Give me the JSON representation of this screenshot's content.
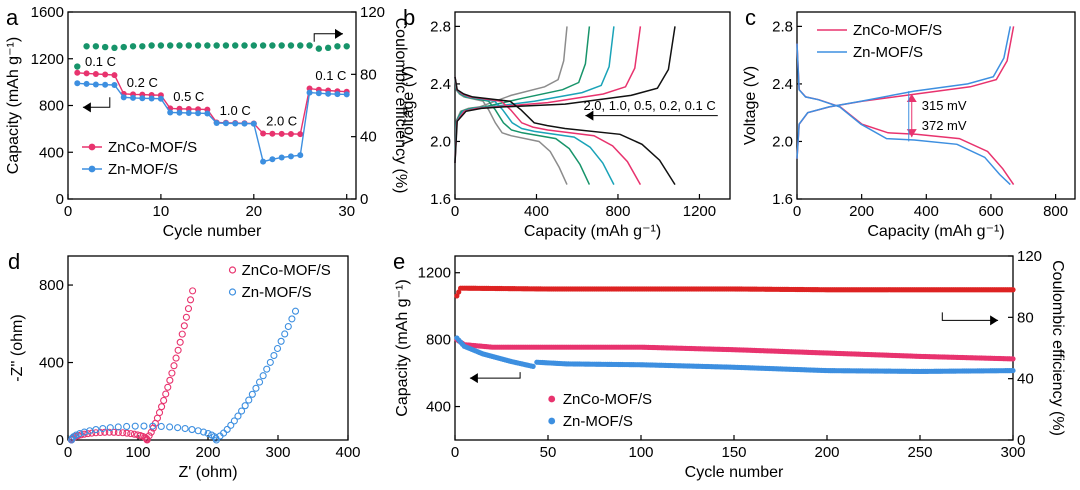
{
  "colors": {
    "pink": "#e8336e",
    "blue": "#3d8fe0",
    "green": "#17946a",
    "red": "#dd2222",
    "axis": "#000000"
  },
  "chart_data": [
    {
      "id": "a",
      "panel_label": "a",
      "type": "scatter",
      "xlabel": "Cycle number",
      "ylabel": "Capacity (mAh g⁻¹)",
      "y2label": "Coulombic efficiency (%)",
      "xlim": [
        0,
        31
      ],
      "ylim": [
        0,
        1600
      ],
      "y2lim": [
        0,
        120
      ],
      "xticks": [
        0,
        10,
        20,
        30
      ],
      "yticks": [
        0,
        400,
        800,
        1200,
        1600
      ],
      "y2ticks": [
        0,
        40,
        80,
        120
      ],
      "legend_position": "bottom-left",
      "rate_labels": [
        {
          "text": "0.1 C",
          "x": 3.5,
          "y": 1140
        },
        {
          "text": "0.2 C",
          "x": 8,
          "y": 960
        },
        {
          "text": "0.5 C",
          "x": 13,
          "y": 840
        },
        {
          "text": "1.0 C",
          "x": 18,
          "y": 720
        },
        {
          "text": "2.0 C",
          "x": 23,
          "y": 630
        },
        {
          "text": "0.1 C",
          "x": 28.3,
          "y": 1020
        }
      ],
      "series": [
        {
          "name": "ZnCo-MOF/S",
          "color": "#e8336e",
          "axis": "left",
          "x": [
            1,
            2,
            3,
            4,
            5,
            6,
            7,
            8,
            9,
            10,
            11,
            12,
            13,
            14,
            15,
            16,
            17,
            18,
            19,
            20,
            21,
            22,
            23,
            24,
            25,
            26,
            27,
            28,
            29,
            30
          ],
          "values": [
            1080,
            1075,
            1070,
            1065,
            1060,
            900,
            895,
            893,
            890,
            888,
            775,
            772,
            770,
            768,
            765,
            655,
            652,
            650,
            648,
            646,
            560,
            558,
            557,
            556,
            555,
            945,
            935,
            928,
            922,
            918
          ]
        },
        {
          "name": "Zn-MOF/S",
          "color": "#3d8fe0",
          "axis": "left",
          "x": [
            1,
            2,
            3,
            4,
            5,
            6,
            7,
            8,
            9,
            10,
            11,
            12,
            13,
            14,
            15,
            16,
            17,
            18,
            19,
            20,
            21,
            22,
            23,
            24,
            25,
            26,
            27,
            28,
            29,
            30
          ],
          "values": [
            990,
            985,
            980,
            978,
            975,
            870,
            865,
            862,
            860,
            858,
            740,
            738,
            736,
            734,
            732,
            650,
            648,
            646,
            645,
            644,
            320,
            340,
            355,
            365,
            375,
            910,
            905,
            900,
            897,
            895
          ]
        },
        {
          "name": "CE",
          "color": "#17946a",
          "axis": "right",
          "x": [
            1,
            2,
            3,
            4,
            5,
            6,
            7,
            8,
            9,
            10,
            11,
            12,
            13,
            14,
            15,
            16,
            17,
            18,
            19,
            20,
            21,
            22,
            23,
            24,
            25,
            26,
            27,
            28,
            29,
            30
          ],
          "values": [
            85,
            98,
            98,
            97.5,
            97,
            97.5,
            98,
            98,
            98.5,
            98.5,
            98.5,
            98.5,
            98.5,
            98.5,
            98.5,
            98.5,
            98.5,
            98.5,
            98.5,
            98.5,
            98.5,
            98.5,
            98.5,
            98.5,
            98.5,
            98.5,
            96.5,
            97,
            98,
            98
          ]
        }
      ]
    },
    {
      "id": "b",
      "panel_label": "b",
      "type": "line",
      "xlabel": "Capacity (mAh g⁻¹)",
      "ylabel": "Voltage (V)",
      "xlim": [
        0,
        1350
      ],
      "ylim": [
        1.6,
        2.9
      ],
      "xticks": [
        0,
        400,
        800,
        1200
      ],
      "yticks": [
        1.6,
        2.0,
        2.4,
        2.8
      ],
      "annotation": "2.0, 1.0, 0.5, 0.2, 0.1 C",
      "series": [
        {
          "name": "2.0 C",
          "color": "#8c8c8c",
          "cap": 550,
          "discharge_plateau": 2.04,
          "charge_plateau": 2.36
        },
        {
          "name": "1.0 C",
          "color": "#17946a",
          "cap": 660,
          "discharge_plateau": 2.06,
          "charge_plateau": 2.34
        },
        {
          "name": "0.5 C",
          "color": "#1aa3b8",
          "cap": 780,
          "discharge_plateau": 2.07,
          "charge_plateau": 2.32
        },
        {
          "name": "0.2 C",
          "color": "#e8336e",
          "cap": 910,
          "discharge_plateau": 2.08,
          "charge_plateau": 2.31
        },
        {
          "name": "0.1 C",
          "color": "#111111",
          "cap": 1080,
          "discharge_plateau": 2.09,
          "charge_plateau": 2.3
        }
      ]
    },
    {
      "id": "c",
      "panel_label": "c",
      "type": "line",
      "xlabel": "Capacity (mAh g⁻¹)",
      "ylabel": "Voltage (V)",
      "xlim": [
        0,
        860
      ],
      "ylim": [
        1.6,
        2.9
      ],
      "xticks": [
        0,
        200,
        400,
        600,
        800
      ],
      "yticks": [
        1.6,
        2.0,
        2.4,
        2.8
      ],
      "legend_position": "top-left",
      "gap_labels": [
        "315 mV",
        "372 mV"
      ],
      "series": [
        {
          "name": "ZnCo-MOF/S",
          "color": "#e8336e",
          "cap": 670,
          "discharge_plateau": 2.05,
          "charge_plateau": 2.36
        },
        {
          "name": "Zn-MOF/S",
          "color": "#3d8fe0",
          "cap": 660,
          "discharge_plateau": 2.01,
          "charge_plateau": 2.38
        }
      ]
    },
    {
      "id": "d",
      "panel_label": "d",
      "type": "scatter",
      "xlabel": "Z' (ohm)",
      "ylabel": "-Z'' (ohm)",
      "xlim": [
        0,
        400
      ],
      "ylim": [
        0,
        950
      ],
      "xticks": [
        0,
        100,
        200,
        300,
        400
      ],
      "yticks": [
        0,
        400,
        800
      ],
      "legend_position": "top-right",
      "series": [
        {
          "name": "ZnCo-MOF/S",
          "color": "#e8336e",
          "r0": 5,
          "r1": 113,
          "tail_end": [
            178,
            770
          ]
        },
        {
          "name": "Zn-MOF/S",
          "color": "#3d8fe0",
          "r0": 5,
          "r1": 212,
          "tail_end": [
            325,
            665
          ]
        }
      ]
    },
    {
      "id": "e",
      "panel_label": "e",
      "type": "scatter",
      "xlabel": "Cycle number",
      "ylabel": "Capacity (mAh g⁻¹)",
      "y2label": "Coulombic efficiency (%)",
      "xlim": [
        0,
        300
      ],
      "ylim": [
        200,
        1300
      ],
      "y2lim": [
        0,
        120
      ],
      "xticks": [
        0,
        50,
        100,
        150,
        200,
        250,
        300
      ],
      "yticks": [
        400,
        800,
        1200
      ],
      "y2ticks": [
        0,
        40,
        80,
        120
      ],
      "legend_position": "bottom-left",
      "series": [
        {
          "name": "ZnCo-MOF/S",
          "color": "#e8336e",
          "axis": "left",
          "x": [
            1,
            5,
            20,
            50,
            100,
            150,
            200,
            250,
            300
          ],
          "values": [
            800,
            770,
            755,
            755,
            755,
            740,
            720,
            700,
            685
          ]
        },
        {
          "name": "Zn-MOF/S",
          "color": "#3d8fe0",
          "axis": "left",
          "x": [
            1,
            5,
            15,
            30,
            42,
            44,
            60,
            100,
            150,
            200,
            250,
            300
          ],
          "values": [
            810,
            760,
            715,
            670,
            640,
            665,
            655,
            650,
            635,
            615,
            610,
            615
          ]
        },
        {
          "name": "CE",
          "color": "#dd2222",
          "axis": "right",
          "x": [
            1,
            3,
            6,
            50,
            100,
            150,
            200,
            250,
            300
          ],
          "values": [
            94,
            99,
            99,
            98.5,
            98.5,
            98.5,
            98,
            98,
            98
          ]
        }
      ]
    }
  ]
}
